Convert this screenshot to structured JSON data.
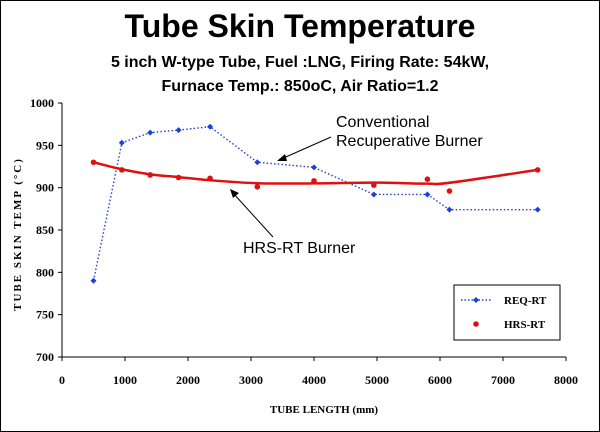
{
  "title": "Tube Skin Temperature",
  "subtitle_line1": "5 inch W-type Tube,  Fuel :LNG, Firing Rate: 54kW,",
  "subtitle_line2": "Furnace Temp.: 850oC,  Air Ratio=1.2",
  "annotations": {
    "conventional_line1": "Conventional",
    "conventional_line2": "Recuperative Burner",
    "hrs": "HRS-RT Burner"
  },
  "colors": {
    "req": "#1f3fd6",
    "hrs": "#e01010",
    "axis": "#000000"
  },
  "chart_data": {
    "type": "scatter",
    "title": "Tube Skin Temperature",
    "xlabel": "TUBE LENGTH (mm)",
    "ylabel": "TUBE SKIN TEMP (°C)",
    "xlim": [
      0,
      8000
    ],
    "ylim": [
      700,
      1000
    ],
    "x_ticks": [
      "0",
      "1000",
      "2000",
      "3000",
      "4000",
      "5000",
      "6000",
      "7000",
      "8000"
    ],
    "y_ticks": [
      "700",
      "750",
      "800",
      "850",
      "900",
      "950",
      "1000"
    ],
    "grid": false,
    "legend_position": "bottom-right",
    "series": [
      {
        "name": "REQ-RT",
        "style": "dotted line with diamond markers",
        "points": [
          [
            500,
            790
          ],
          [
            950,
            953
          ],
          [
            1400,
            965
          ],
          [
            1850,
            968
          ],
          [
            2350,
            972
          ],
          [
            3100,
            930
          ],
          [
            4000,
            924
          ],
          [
            4950,
            892
          ],
          [
            5800,
            892
          ],
          [
            6150,
            874
          ],
          [
            7550,
            874
          ]
        ]
      },
      {
        "name": "HRS-RT",
        "style": "solid smooth line with point markers",
        "points": [
          [
            500,
            930
          ],
          [
            950,
            921
          ],
          [
            1400,
            915
          ],
          [
            1850,
            912
          ],
          [
            2350,
            911
          ],
          [
            3100,
            901
          ],
          [
            4000,
            908
          ],
          [
            4950,
            903
          ],
          [
            5800,
            910
          ],
          [
            6150,
            896
          ],
          [
            7550,
            921
          ]
        ]
      }
    ]
  }
}
